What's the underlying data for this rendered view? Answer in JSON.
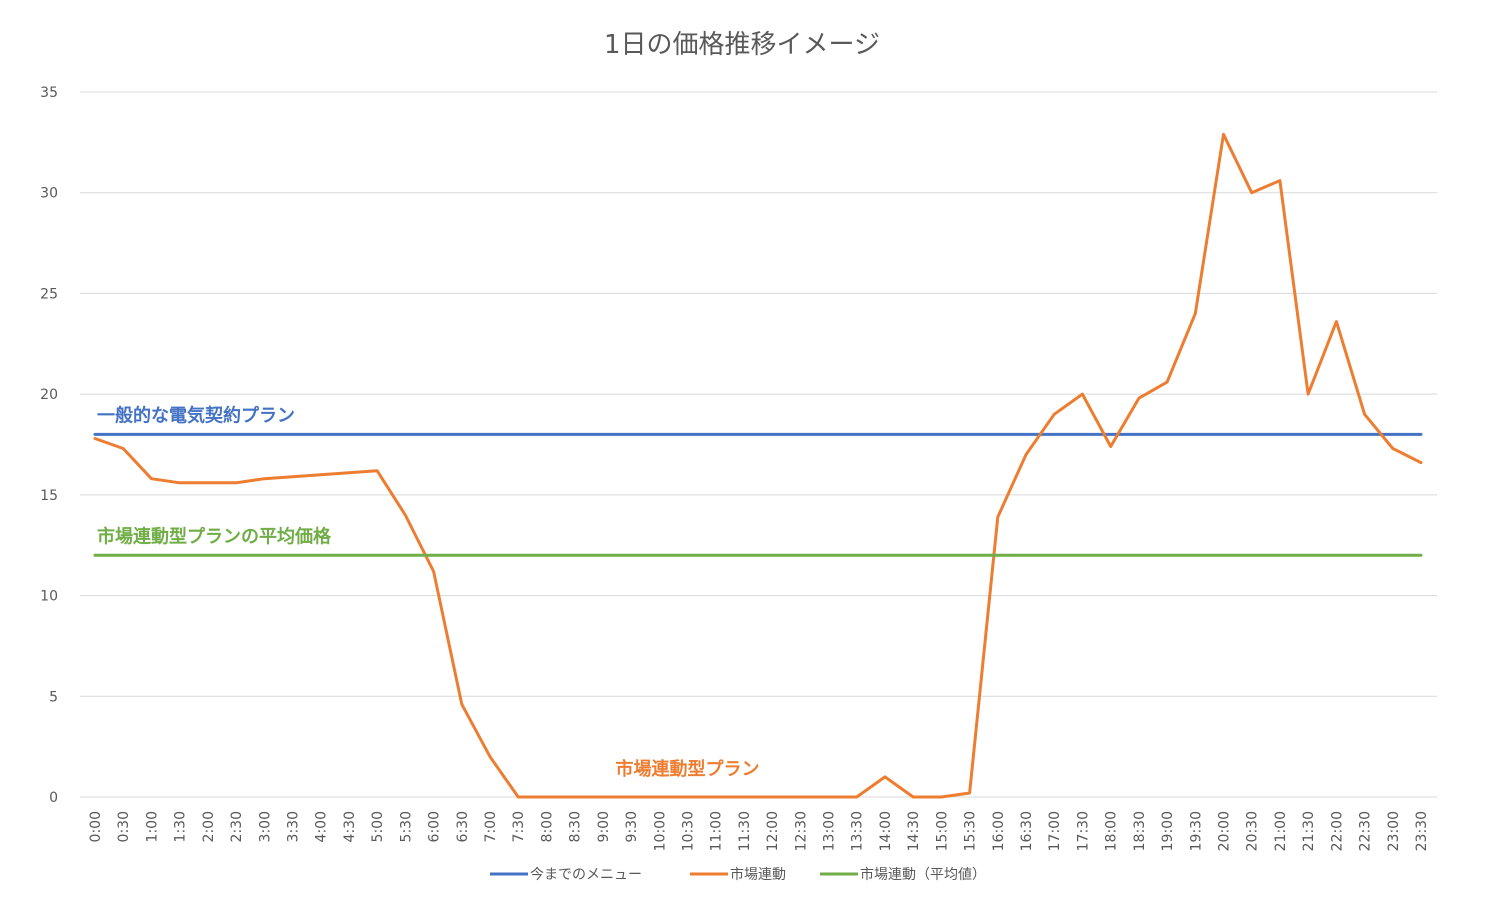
{
  "chart_data": {
    "type": "line",
    "title": "1日の価格推移イメージ",
    "xlabel": "",
    "ylabel": "",
    "ylim": [
      0,
      35
    ],
    "yticks": [
      0,
      5,
      10,
      15,
      20,
      25,
      30,
      35
    ],
    "grid": true,
    "legend_position": "bottom",
    "categories": [
      "0:00",
      "0:30",
      "1:00",
      "1:30",
      "2:00",
      "2:30",
      "3:00",
      "3:30",
      "4:00",
      "4:30",
      "5:00",
      "5:30",
      "6:00",
      "6:30",
      "7:00",
      "7:30",
      "8:00",
      "8:30",
      "9:00",
      "9:30",
      "10:00",
      "10:30",
      "11:00",
      "11:30",
      "12:00",
      "12:30",
      "13:00",
      "13:30",
      "14:00",
      "14:30",
      "15:00",
      "15:30",
      "16:00",
      "16:30",
      "17:00",
      "17:30",
      "18:00",
      "18:30",
      "19:00",
      "19:30",
      "20:00",
      "20:30",
      "21:00",
      "21:30",
      "22:00",
      "22:30",
      "23:00",
      "23:30"
    ],
    "series": [
      {
        "name": "今までのメニュー",
        "color": "#4472C4",
        "values": [
          18,
          18,
          18,
          18,
          18,
          18,
          18,
          18,
          18,
          18,
          18,
          18,
          18,
          18,
          18,
          18,
          18,
          18,
          18,
          18,
          18,
          18,
          18,
          18,
          18,
          18,
          18,
          18,
          18,
          18,
          18,
          18,
          18,
          18,
          18,
          18,
          18,
          18,
          18,
          18,
          18,
          18,
          18,
          18,
          18,
          18,
          18,
          18
        ]
      },
      {
        "name": "市場連動",
        "color": "#ED7D31",
        "values": [
          17.8,
          17.3,
          15.8,
          15.6,
          15.6,
          15.6,
          15.8,
          15.9,
          16.0,
          16.1,
          16.2,
          14.0,
          11.2,
          4.6,
          2.0,
          0,
          0,
          0,
          0,
          0,
          0,
          0,
          0,
          0,
          0,
          0,
          0,
          0,
          1.0,
          0,
          0,
          0.2,
          13.9,
          17.0,
          19.0,
          20.0,
          17.4,
          19.8,
          20.6,
          24.0,
          32.9,
          30.0,
          30.6,
          20.0,
          23.6,
          19.0,
          17.3,
          16.6
        ]
      },
      {
        "name": "市場連動（平均値）",
        "color": "#70AD47",
        "values": [
          12,
          12,
          12,
          12,
          12,
          12,
          12,
          12,
          12,
          12,
          12,
          12,
          12,
          12,
          12,
          12,
          12,
          12,
          12,
          12,
          12,
          12,
          12,
          12,
          12,
          12,
          12,
          12,
          12,
          12,
          12,
          12,
          12,
          12,
          12,
          12,
          12,
          12,
          12,
          12,
          12,
          12,
          12,
          12,
          12,
          12,
          12,
          12
        ]
      }
    ],
    "annotations": [
      {
        "text": "一般的な電気契約プラン",
        "color": "#4472C4",
        "at_category": "0:00",
        "at_value": 18
      },
      {
        "text": "市場連動型プランの平均価格",
        "color": "#70AD47",
        "at_category": "0:00",
        "at_value": 12
      },
      {
        "text": "市場連動型プラン",
        "color": "#ED7D31",
        "at_category": "10:30",
        "at_value": 0
      }
    ]
  }
}
